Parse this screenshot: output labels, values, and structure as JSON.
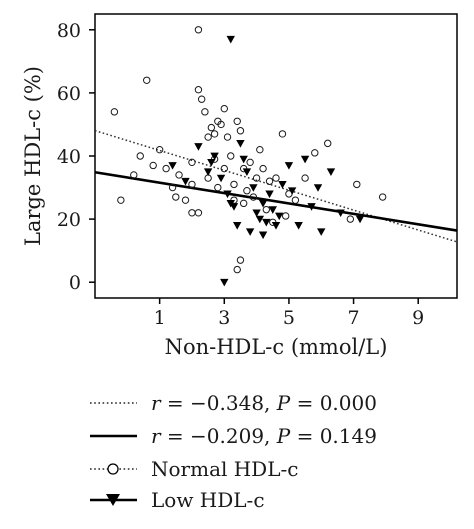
{
  "chart_data": {
    "type": "scatter",
    "xlabel": "Non-HDL-c (mmol/L)",
    "ylabel": "Large HDL-c (%)",
    "xlim": [
      -1,
      10.2
    ],
    "ylim": [
      -5,
      85
    ],
    "xticks": [
      1,
      3,
      5,
      7,
      9
    ],
    "xtick_labels": [
      "1",
      "3",
      "5",
      "7",
      "9"
    ],
    "yticks": [
      0,
      20,
      40,
      60,
      80
    ],
    "ytick_labels": [
      "0",
      "20",
      "40",
      "60",
      "80"
    ],
    "grid": false,
    "series": [
      {
        "name": "Normal HDL-c",
        "marker": "circle-open",
        "points": [
          [
            -0.4,
            54
          ],
          [
            0.6,
            64
          ],
          [
            -0.2,
            26
          ],
          [
            0.2,
            34
          ],
          [
            0.4,
            40
          ],
          [
            0.8,
            37
          ],
          [
            1.0,
            42
          ],
          [
            1.2,
            36
          ],
          [
            1.4,
            30
          ],
          [
            1.6,
            34
          ],
          [
            1.8,
            26
          ],
          [
            2.0,
            38
          ],
          [
            2.0,
            22
          ],
          [
            2.2,
            22
          ],
          [
            2.3,
            58
          ],
          [
            2.4,
            54
          ],
          [
            2.5,
            46
          ],
          [
            2.6,
            49
          ],
          [
            2.7,
            47
          ],
          [
            2.8,
            51
          ],
          [
            2.9,
            50
          ],
          [
            3.0,
            36
          ],
          [
            3.1,
            46
          ],
          [
            3.2,
            40
          ],
          [
            3.3,
            31
          ],
          [
            3.4,
            51
          ],
          [
            3.5,
            48
          ],
          [
            3.6,
            36
          ],
          [
            3.7,
            29
          ],
          [
            3.8,
            38
          ],
          [
            3.9,
            27
          ],
          [
            4.0,
            33
          ],
          [
            4.1,
            42
          ],
          [
            4.2,
            36
          ],
          [
            4.3,
            23
          ],
          [
            4.4,
            32
          ],
          [
            4.6,
            33
          ],
          [
            4.8,
            47
          ],
          [
            5.0,
            28
          ],
          [
            5.2,
            26
          ],
          [
            5.5,
            33
          ],
          [
            5.8,
            41
          ],
          [
            6.2,
            44
          ],
          [
            6.9,
            20
          ],
          [
            7.1,
            31
          ],
          [
            7.9,
            27
          ],
          [
            2.2,
            80
          ],
          [
            2.2,
            61
          ],
          [
            3.5,
            7
          ],
          [
            3.4,
            4
          ],
          [
            2.7,
            39
          ],
          [
            3.3,
            26
          ],
          [
            4.5,
            19
          ],
          [
            2.0,
            31
          ],
          [
            2.5,
            33
          ],
          [
            3.0,
            55
          ],
          [
            2.8,
            30
          ],
          [
            3.6,
            25
          ],
          [
            1.5,
            27
          ],
          [
            4.9,
            21
          ]
        ]
      },
      {
        "name": "Low HDL-c",
        "marker": "triangle-filled",
        "points": [
          [
            1.4,
            37
          ],
          [
            1.8,
            32
          ],
          [
            2.2,
            43
          ],
          [
            2.5,
            35
          ],
          [
            2.7,
            40
          ],
          [
            2.9,
            33
          ],
          [
            3.1,
            28
          ],
          [
            3.2,
            77
          ],
          [
            3.3,
            24
          ],
          [
            3.4,
            18
          ],
          [
            3.5,
            44
          ],
          [
            3.6,
            39
          ],
          [
            3.7,
            35
          ],
          [
            3.8,
            16
          ],
          [
            3.9,
            30
          ],
          [
            4.0,
            22
          ],
          [
            4.1,
            20
          ],
          [
            4.2,
            25
          ],
          [
            4.3,
            19
          ],
          [
            4.4,
            28
          ],
          [
            4.5,
            23
          ],
          [
            4.6,
            18
          ],
          [
            4.7,
            21
          ],
          [
            4.8,
            31
          ],
          [
            5.0,
            37
          ],
          [
            5.1,
            29
          ],
          [
            5.3,
            18
          ],
          [
            5.5,
            39
          ],
          [
            5.7,
            24
          ],
          [
            5.9,
            30
          ],
          [
            6.0,
            16
          ],
          [
            6.3,
            35
          ],
          [
            6.6,
            22
          ],
          [
            7.2,
            20
          ],
          [
            3.0,
            0
          ],
          [
            3.2,
            25
          ],
          [
            2.6,
            38
          ],
          [
            4.2,
            15
          ]
        ]
      }
    ],
    "trend_lines": [
      {
        "style": "dotted",
        "intercept": 44.9,
        "slope": -3.15
      },
      {
        "style": "solid",
        "intercept": 33.2,
        "slope": -1.65
      }
    ],
    "legend": {
      "placement": "bottom",
      "entries": [
        {
          "type": "dotted-line",
          "r_label": "r",
          "r_value": " = −0.348, ",
          "p_label": "P",
          "p_value": " = 0.000"
        },
        {
          "type": "solid-line",
          "r_label": "r",
          "r_value": " = −0.209, ",
          "p_label": "P",
          "p_value": " = 0.149"
        },
        {
          "type": "circle-dotted",
          "label": "Normal HDL-c"
        },
        {
          "type": "triangle-solid",
          "label": "Low HDL-c"
        }
      ]
    }
  }
}
